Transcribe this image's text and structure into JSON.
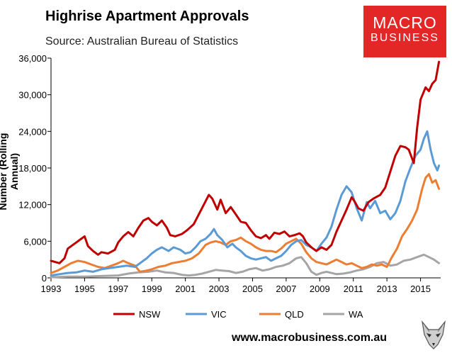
{
  "header": {
    "title": "Highrise Apartment Approvals",
    "subtitle": "Source: Australian Bureau of Statistics"
  },
  "logo": {
    "line1": "MACRO",
    "line2": "BUSINESS"
  },
  "footer": {
    "url": "www.macrobusiness.com.au"
  },
  "chart_data": {
    "type": "line",
    "title": "Highrise Apartment Approvals",
    "ylabel": "Number (Rolling Annual)",
    "xlabel": "",
    "xlim": [
      1993,
      2016.2
    ],
    "ylim": [
      0,
      36000
    ],
    "x_ticks": [
      "1993",
      "1995",
      "1997",
      "1999",
      "2001",
      "2003",
      "2005",
      "2007",
      "2009",
      "2011",
      "2013",
      "2015"
    ],
    "y_ticks": [
      "0",
      "6,000",
      "12,000",
      "18,000",
      "24,000",
      "30,000",
      "36,000"
    ],
    "grid": false,
    "legend_position": "bottom",
    "series": [
      {
        "name": "NSW",
        "color": "#c00000",
        "points": [
          [
            1993,
            2800
          ],
          [
            1993.5,
            2400
          ],
          [
            1993.8,
            3200
          ],
          [
            1994,
            4800
          ],
          [
            1994.4,
            5600
          ],
          [
            1994.8,
            6400
          ],
          [
            1995,
            6800
          ],
          [
            1995.2,
            5200
          ],
          [
            1995.5,
            4400
          ],
          [
            1995.8,
            3800
          ],
          [
            1996,
            4200
          ],
          [
            1996.4,
            4000
          ],
          [
            1996.8,
            4600
          ],
          [
            1997,
            5800
          ],
          [
            1997.3,
            6800
          ],
          [
            1997.6,
            7500
          ],
          [
            1997.9,
            6800
          ],
          [
            1998.2,
            8200
          ],
          [
            1998.5,
            9400
          ],
          [
            1998.8,
            9800
          ],
          [
            1999,
            9200
          ],
          [
            1999.3,
            8600
          ],
          [
            1999.6,
            9400
          ],
          [
            1999.9,
            8200
          ],
          [
            2000.1,
            7000
          ],
          [
            2000.4,
            6800
          ],
          [
            2000.8,
            7200
          ],
          [
            2001.1,
            7800
          ],
          [
            2001.5,
            8800
          ],
          [
            2001.8,
            10400
          ],
          [
            2002.1,
            12000
          ],
          [
            2002.4,
            13600
          ],
          [
            2002.6,
            13000
          ],
          [
            2002.9,
            11200
          ],
          [
            2003.1,
            12800
          ],
          [
            2003.4,
            10600
          ],
          [
            2003.7,
            11600
          ],
          [
            2004,
            10400
          ],
          [
            2004.3,
            9200
          ],
          [
            2004.6,
            9000
          ],
          [
            2004.9,
            7800
          ],
          [
            2005.2,
            6800
          ],
          [
            2005.5,
            6500
          ],
          [
            2005.8,
            7000
          ],
          [
            2006,
            6400
          ],
          [
            2006.3,
            7400
          ],
          [
            2006.6,
            7200
          ],
          [
            2006.9,
            7600
          ],
          [
            2007.2,
            6800
          ],
          [
            2007.5,
            7000
          ],
          [
            2007.8,
            7300
          ],
          [
            2008,
            6800
          ],
          [
            2008.2,
            5800
          ],
          [
            2008.5,
            5000
          ],
          [
            2008.8,
            4400
          ],
          [
            2009.1,
            5000
          ],
          [
            2009.4,
            4600
          ],
          [
            2009.7,
            5400
          ],
          [
            2010,
            7600
          ],
          [
            2010.3,
            9400
          ],
          [
            2010.6,
            11200
          ],
          [
            2010.9,
            13200
          ],
          [
            2011.1,
            12400
          ],
          [
            2011.3,
            11400
          ],
          [
            2011.6,
            11000
          ],
          [
            2011.9,
            12400
          ],
          [
            2012.2,
            13000
          ],
          [
            2012.6,
            13600
          ],
          [
            2012.9,
            14800
          ],
          [
            2013.2,
            17400
          ],
          [
            2013.5,
            20000
          ],
          [
            2013.8,
            21600
          ],
          [
            2014.1,
            21400
          ],
          [
            2014.3,
            21000
          ],
          [
            2014.6,
            18800
          ],
          [
            2014.8,
            24600
          ],
          [
            2015,
            29200
          ],
          [
            2015.3,
            31200
          ],
          [
            2015.5,
            30600
          ],
          [
            2015.7,
            31800
          ],
          [
            2015.9,
            32400
          ],
          [
            2016.1,
            35400
          ]
        ]
      },
      {
        "name": "VIC",
        "color": "#5b9bd5",
        "points": [
          [
            1993,
            400
          ],
          [
            1993.5,
            600
          ],
          [
            1994,
            800
          ],
          [
            1994.5,
            900
          ],
          [
            1995,
            1200
          ],
          [
            1995.5,
            1000
          ],
          [
            1996,
            1400
          ],
          [
            1996.5,
            1600
          ],
          [
            1997,
            1800
          ],
          [
            1997.5,
            2000
          ],
          [
            1998,
            1800
          ],
          [
            1998.3,
            2400
          ],
          [
            1998.7,
            3200
          ],
          [
            1999,
            4000
          ],
          [
            1999.3,
            4600
          ],
          [
            1999.6,
            5000
          ],
          [
            2000,
            4400
          ],
          [
            2000.3,
            5000
          ],
          [
            2000.7,
            4600
          ],
          [
            2001,
            4000
          ],
          [
            2001.3,
            4200
          ],
          [
            2001.6,
            5000
          ],
          [
            2001.9,
            6000
          ],
          [
            2002.2,
            6400
          ],
          [
            2002.5,
            7200
          ],
          [
            2002.7,
            8000
          ],
          [
            2002.9,
            7000
          ],
          [
            2003.2,
            6200
          ],
          [
            2003.5,
            5000
          ],
          [
            2003.8,
            5600
          ],
          [
            2004,
            5000
          ],
          [
            2004.3,
            4400
          ],
          [
            2004.6,
            3600
          ],
          [
            2004.9,
            3200
          ],
          [
            2005.2,
            3000
          ],
          [
            2005.5,
            3200
          ],
          [
            2005.8,
            3400
          ],
          [
            2006.1,
            2800
          ],
          [
            2006.4,
            3200
          ],
          [
            2006.7,
            3600
          ],
          [
            2007,
            4400
          ],
          [
            2007.3,
            5400
          ],
          [
            2007.6,
            6000
          ],
          [
            2007.9,
            6200
          ],
          [
            2008.2,
            5400
          ],
          [
            2008.5,
            5000
          ],
          [
            2008.8,
            4400
          ],
          [
            2009.1,
            5600
          ],
          [
            2009.4,
            6600
          ],
          [
            2009.7,
            8400
          ],
          [
            2010,
            11200
          ],
          [
            2010.3,
            13600
          ],
          [
            2010.6,
            15000
          ],
          [
            2010.9,
            14000
          ],
          [
            2011.2,
            11400
          ],
          [
            2011.5,
            9400
          ],
          [
            2011.8,
            12400
          ],
          [
            2012,
            11400
          ],
          [
            2012.3,
            12600
          ],
          [
            2012.6,
            10600
          ],
          [
            2012.9,
            11000
          ],
          [
            2013.2,
            9600
          ],
          [
            2013.5,
            10600
          ],
          [
            2013.8,
            12600
          ],
          [
            2014.1,
            15800
          ],
          [
            2014.4,
            18000
          ],
          [
            2014.7,
            20000
          ],
          [
            2015,
            21000
          ],
          [
            2015.2,
            22800
          ],
          [
            2015.4,
            24000
          ],
          [
            2015.6,
            21000
          ],
          [
            2015.8,
            18800
          ],
          [
            2016,
            17600
          ],
          [
            2016.1,
            18400
          ]
        ]
      },
      {
        "name": "QLD",
        "color": "#ed7d31",
        "points": [
          [
            1993,
            800
          ],
          [
            1993.4,
            1200
          ],
          [
            1993.8,
            1800
          ],
          [
            1994.2,
            2400
          ],
          [
            1994.6,
            2800
          ],
          [
            1995,
            2600
          ],
          [
            1995.4,
            2200
          ],
          [
            1995.8,
            1800
          ],
          [
            1996.2,
            1600
          ],
          [
            1996.6,
            2000
          ],
          [
            1997,
            2400
          ],
          [
            1997.3,
            2800
          ],
          [
            1997.6,
            2400
          ],
          [
            1998,
            2000
          ],
          [
            1998.3,
            1000
          ],
          [
            1998.7,
            1200
          ],
          [
            1999,
            1400
          ],
          [
            1999.4,
            1800
          ],
          [
            1999.8,
            2000
          ],
          [
            2000.2,
            2400
          ],
          [
            2000.6,
            2600
          ],
          [
            2001,
            2800
          ],
          [
            2001.4,
            3200
          ],
          [
            2001.8,
            4000
          ],
          [
            2002.2,
            5400
          ],
          [
            2002.5,
            5800
          ],
          [
            2002.8,
            6000
          ],
          [
            2003.1,
            5800
          ],
          [
            2003.4,
            5400
          ],
          [
            2003.7,
            6000
          ],
          [
            2004,
            6200
          ],
          [
            2004.3,
            6600
          ],
          [
            2004.6,
            6000
          ],
          [
            2004.9,
            5600
          ],
          [
            2005.2,
            5000
          ],
          [
            2005.5,
            4600
          ],
          [
            2005.8,
            4400
          ],
          [
            2006.1,
            4400
          ],
          [
            2006.4,
            4200
          ],
          [
            2006.7,
            4800
          ],
          [
            2007,
            5600
          ],
          [
            2007.3,
            6000
          ],
          [
            2007.6,
            6400
          ],
          [
            2007.9,
            5600
          ],
          [
            2008.2,
            4200
          ],
          [
            2008.5,
            3200
          ],
          [
            2008.8,
            2600
          ],
          [
            2009.1,
            2400
          ],
          [
            2009.4,
            2200
          ],
          [
            2009.7,
            2600
          ],
          [
            2010,
            3000
          ],
          [
            2010.3,
            2600
          ],
          [
            2010.6,
            2200
          ],
          [
            2010.9,
            2400
          ],
          [
            2011.2,
            2000
          ],
          [
            2011.5,
            1600
          ],
          [
            2011.8,
            1800
          ],
          [
            2012.1,
            2200
          ],
          [
            2012.4,
            2000
          ],
          [
            2012.7,
            2200
          ],
          [
            2013,
            1800
          ],
          [
            2013.3,
            3400
          ],
          [
            2013.6,
            4800
          ],
          [
            2013.9,
            6800
          ],
          [
            2014.2,
            8000
          ],
          [
            2014.5,
            9400
          ],
          [
            2014.8,
            11200
          ],
          [
            2015.1,
            14600
          ],
          [
            2015.3,
            16400
          ],
          [
            2015.5,
            17000
          ],
          [
            2015.7,
            15600
          ],
          [
            2015.9,
            16000
          ],
          [
            2016.1,
            14600
          ]
        ]
      },
      {
        "name": "WA",
        "color": "#a5a5a5",
        "points": [
          [
            1993,
            100
          ],
          [
            1994,
            200
          ],
          [
            1995,
            200
          ],
          [
            1996,
            300
          ],
          [
            1997,
            400
          ],
          [
            1997.6,
            700
          ],
          [
            1998.2,
            900
          ],
          [
            1998.8,
            1000
          ],
          [
            1999.3,
            1200
          ],
          [
            1999.8,
            900
          ],
          [
            2000.3,
            800
          ],
          [
            2000.8,
            500
          ],
          [
            2001.2,
            400
          ],
          [
            2001.6,
            500
          ],
          [
            2002,
            700
          ],
          [
            2002.4,
            1000
          ],
          [
            2002.8,
            1300
          ],
          [
            2003.2,
            1200
          ],
          [
            2003.6,
            1100
          ],
          [
            2004,
            800
          ],
          [
            2004.4,
            1000
          ],
          [
            2004.8,
            1400
          ],
          [
            2005.2,
            1600
          ],
          [
            2005.6,
            1200
          ],
          [
            2006,
            1400
          ],
          [
            2006.4,
            1800
          ],
          [
            2006.8,
            2000
          ],
          [
            2007.2,
            2400
          ],
          [
            2007.6,
            3200
          ],
          [
            2007.9,
            3400
          ],
          [
            2008.2,
            2400
          ],
          [
            2008.5,
            1000
          ],
          [
            2008.8,
            500
          ],
          [
            2009.1,
            800
          ],
          [
            2009.4,
            1000
          ],
          [
            2009.7,
            800
          ],
          [
            2010,
            600
          ],
          [
            2010.4,
            700
          ],
          [
            2010.8,
            900
          ],
          [
            2011.2,
            1200
          ],
          [
            2011.6,
            1400
          ],
          [
            2012,
            1800
          ],
          [
            2012.4,
            2400
          ],
          [
            2012.8,
            2600
          ],
          [
            2013.2,
            2000
          ],
          [
            2013.6,
            2200
          ],
          [
            2014,
            2800
          ],
          [
            2014.4,
            3000
          ],
          [
            2014.8,
            3400
          ],
          [
            2015.2,
            3800
          ],
          [
            2015.5,
            3400
          ],
          [
            2015.8,
            3000
          ],
          [
            2016.1,
            2400
          ]
        ]
      }
    ]
  }
}
